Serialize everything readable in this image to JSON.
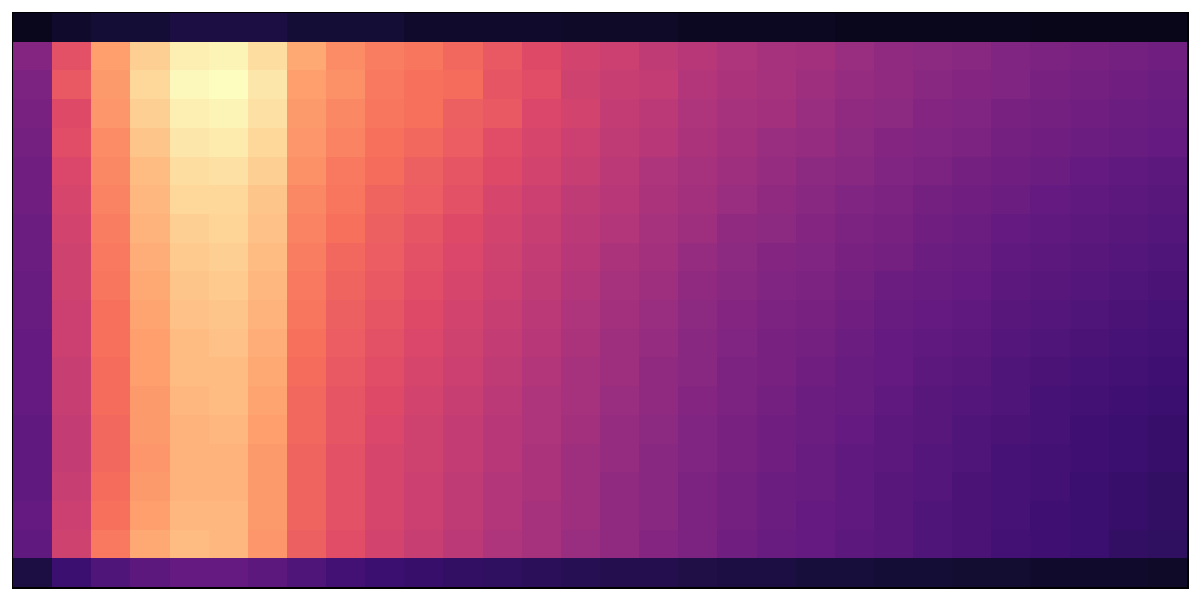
{
  "chart_data": {
    "type": "heatmap",
    "color": "magma",
    "zlim": [
      0,
      1
    ],
    "tick_labels": false,
    "grid": false,
    "cells": [
      [
        0.05,
        0.08,
        0.1,
        0.1,
        0.12,
        0.12,
        0.12,
        0.1,
        0.1,
        0.1,
        0.08,
        0.08,
        0.08,
        0.08,
        0.07,
        0.07,
        0.07,
        0.06,
        0.06,
        0.06,
        0.06,
        0.05,
        0.05,
        0.05,
        0.05,
        0.05,
        0.04,
        0.04,
        0.04,
        0.04
      ],
      [
        0.38,
        0.62,
        0.8,
        0.9,
        0.97,
        0.98,
        0.93,
        0.82,
        0.76,
        0.73,
        0.71,
        0.68,
        0.64,
        0.6,
        0.57,
        0.55,
        0.52,
        0.5,
        0.48,
        0.46,
        0.45,
        0.43,
        0.41,
        0.4,
        0.39,
        0.37,
        0.36,
        0.35,
        0.34,
        0.33
      ],
      [
        0.36,
        0.64,
        0.79,
        0.92,
        0.99,
        1.0,
        0.95,
        0.8,
        0.77,
        0.72,
        0.7,
        0.69,
        0.63,
        0.61,
        0.56,
        0.54,
        0.53,
        0.49,
        0.47,
        0.46,
        0.44,
        0.42,
        0.41,
        0.39,
        0.38,
        0.37,
        0.35,
        0.34,
        0.33,
        0.32
      ],
      [
        0.35,
        0.6,
        0.78,
        0.9,
        0.97,
        0.98,
        0.94,
        0.79,
        0.75,
        0.71,
        0.7,
        0.66,
        0.64,
        0.59,
        0.57,
        0.53,
        0.51,
        0.48,
        0.46,
        0.45,
        0.43,
        0.41,
        0.4,
        0.38,
        0.37,
        0.35,
        0.34,
        0.33,
        0.32,
        0.31
      ],
      [
        0.34,
        0.61,
        0.76,
        0.88,
        0.95,
        0.96,
        0.92,
        0.78,
        0.74,
        0.7,
        0.68,
        0.65,
        0.61,
        0.58,
        0.55,
        0.52,
        0.5,
        0.47,
        0.45,
        0.43,
        0.42,
        0.4,
        0.38,
        0.37,
        0.36,
        0.34,
        0.33,
        0.32,
        0.31,
        0.3
      ],
      [
        0.33,
        0.59,
        0.75,
        0.86,
        0.93,
        0.94,
        0.9,
        0.77,
        0.72,
        0.69,
        0.66,
        0.63,
        0.6,
        0.57,
        0.54,
        0.51,
        0.48,
        0.46,
        0.44,
        0.42,
        0.4,
        0.39,
        0.37,
        0.36,
        0.34,
        0.33,
        0.32,
        0.3,
        0.29,
        0.28
      ],
      [
        0.33,
        0.58,
        0.74,
        0.85,
        0.92,
        0.92,
        0.88,
        0.75,
        0.71,
        0.67,
        0.65,
        0.62,
        0.58,
        0.55,
        0.52,
        0.5,
        0.47,
        0.45,
        0.43,
        0.41,
        0.39,
        0.37,
        0.36,
        0.34,
        0.33,
        0.32,
        0.3,
        0.29,
        0.28,
        0.27
      ],
      [
        0.32,
        0.57,
        0.73,
        0.84,
        0.9,
        0.91,
        0.87,
        0.74,
        0.7,
        0.66,
        0.63,
        0.6,
        0.57,
        0.54,
        0.51,
        0.49,
        0.46,
        0.44,
        0.41,
        0.4,
        0.38,
        0.36,
        0.35,
        0.33,
        0.32,
        0.3,
        0.29,
        0.28,
        0.27,
        0.26
      ],
      [
        0.32,
        0.56,
        0.72,
        0.83,
        0.89,
        0.9,
        0.86,
        0.73,
        0.68,
        0.65,
        0.62,
        0.59,
        0.56,
        0.53,
        0.5,
        0.47,
        0.45,
        0.42,
        0.4,
        0.38,
        0.37,
        0.35,
        0.34,
        0.32,
        0.31,
        0.29,
        0.28,
        0.27,
        0.26,
        0.25
      ],
      [
        0.31,
        0.56,
        0.71,
        0.82,
        0.88,
        0.89,
        0.85,
        0.72,
        0.67,
        0.64,
        0.61,
        0.58,
        0.55,
        0.52,
        0.49,
        0.46,
        0.44,
        0.41,
        0.39,
        0.37,
        0.36,
        0.34,
        0.32,
        0.31,
        0.3,
        0.28,
        0.27,
        0.26,
        0.25,
        0.24
      ],
      [
        0.31,
        0.55,
        0.7,
        0.81,
        0.87,
        0.88,
        0.84,
        0.71,
        0.66,
        0.63,
        0.6,
        0.57,
        0.54,
        0.51,
        0.48,
        0.45,
        0.43,
        0.4,
        0.38,
        0.36,
        0.35,
        0.33,
        0.31,
        0.3,
        0.29,
        0.27,
        0.26,
        0.25,
        0.24,
        0.23
      ],
      [
        0.3,
        0.55,
        0.7,
        0.8,
        0.86,
        0.87,
        0.83,
        0.7,
        0.65,
        0.62,
        0.59,
        0.56,
        0.53,
        0.5,
        0.47,
        0.44,
        0.42,
        0.39,
        0.37,
        0.35,
        0.34,
        0.32,
        0.3,
        0.29,
        0.28,
        0.26,
        0.25,
        0.24,
        0.23,
        0.22
      ],
      [
        0.3,
        0.54,
        0.69,
        0.8,
        0.86,
        0.86,
        0.82,
        0.69,
        0.64,
        0.61,
        0.58,
        0.55,
        0.52,
        0.49,
        0.46,
        0.44,
        0.41,
        0.39,
        0.36,
        0.35,
        0.33,
        0.31,
        0.3,
        0.28,
        0.27,
        0.25,
        0.24,
        0.23,
        0.22,
        0.21
      ],
      [
        0.3,
        0.54,
        0.69,
        0.79,
        0.85,
        0.86,
        0.81,
        0.68,
        0.63,
        0.6,
        0.57,
        0.54,
        0.51,
        0.48,
        0.46,
        0.43,
        0.41,
        0.38,
        0.36,
        0.34,
        0.32,
        0.31,
        0.29,
        0.27,
        0.26,
        0.25,
        0.23,
        0.22,
        0.21,
        0.2
      ],
      [
        0.29,
        0.53,
        0.68,
        0.79,
        0.84,
        0.85,
        0.8,
        0.68,
        0.63,
        0.59,
        0.56,
        0.53,
        0.5,
        0.48,
        0.45,
        0.42,
        0.4,
        0.37,
        0.35,
        0.33,
        0.32,
        0.3,
        0.28,
        0.27,
        0.25,
        0.24,
        0.23,
        0.21,
        0.2,
        0.19
      ],
      [
        0.29,
        0.53,
        0.68,
        0.78,
        0.84,
        0.84,
        0.79,
        0.67,
        0.62,
        0.58,
        0.56,
        0.53,
        0.5,
        0.47,
        0.44,
        0.42,
        0.39,
        0.37,
        0.35,
        0.33,
        0.31,
        0.29,
        0.28,
        0.26,
        0.25,
        0.23,
        0.22,
        0.21,
        0.2,
        0.19
      ],
      [
        0.29,
        0.54,
        0.69,
        0.79,
        0.84,
        0.84,
        0.79,
        0.67,
        0.62,
        0.58,
        0.55,
        0.52,
        0.49,
        0.47,
        0.44,
        0.41,
        0.39,
        0.36,
        0.34,
        0.32,
        0.31,
        0.29,
        0.27,
        0.26,
        0.24,
        0.23,
        0.22,
        0.2,
        0.19,
        0.18
      ],
      [
        0.3,
        0.55,
        0.7,
        0.8,
        0.85,
        0.85,
        0.79,
        0.67,
        0.62,
        0.58,
        0.55,
        0.52,
        0.49,
        0.46,
        0.44,
        0.41,
        0.39,
        0.36,
        0.34,
        0.32,
        0.3,
        0.29,
        0.27,
        0.25,
        0.24,
        0.23,
        0.21,
        0.2,
        0.19,
        0.18
      ],
      [
        0.29,
        0.56,
        0.72,
        0.82,
        0.86,
        0.85,
        0.78,
        0.66,
        0.61,
        0.57,
        0.54,
        0.51,
        0.48,
        0.46,
        0.43,
        0.41,
        0.38,
        0.36,
        0.33,
        0.31,
        0.3,
        0.28,
        0.27,
        0.25,
        0.24,
        0.22,
        0.21,
        0.2,
        0.18,
        0.17
      ],
      [
        0.12,
        0.2,
        0.25,
        0.28,
        0.3,
        0.3,
        0.28,
        0.25,
        0.22,
        0.2,
        0.19,
        0.18,
        0.17,
        0.16,
        0.15,
        0.14,
        0.14,
        0.13,
        0.12,
        0.12,
        0.11,
        0.11,
        0.1,
        0.1,
        0.09,
        0.09,
        0.08,
        0.08,
        0.08,
        0.07
      ]
    ]
  }
}
